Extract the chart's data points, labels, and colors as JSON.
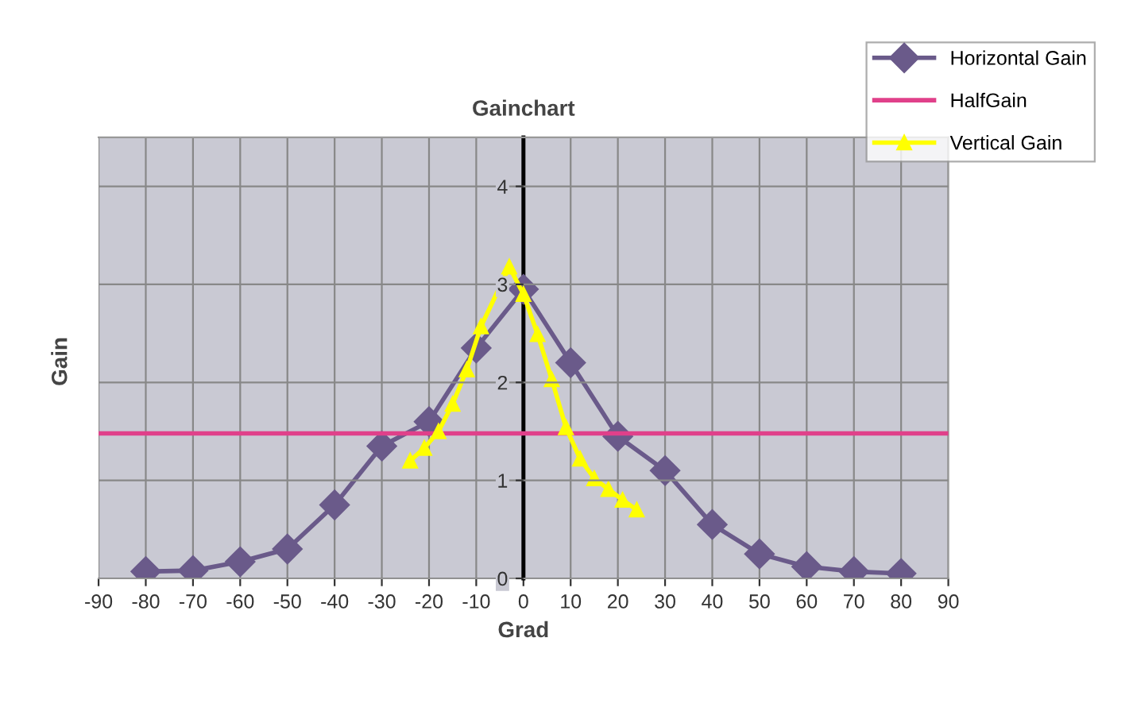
{
  "chart_data": {
    "type": "line",
    "title": "Gainchart",
    "xlabel": "Grad",
    "ylabel": "Gain",
    "xlim": [
      -90,
      90
    ],
    "xticks": [
      -90,
      -80,
      -70,
      -60,
      -50,
      -40,
      -30,
      -20,
      -10,
      0,
      10,
      20,
      30,
      40,
      50,
      60,
      70,
      80,
      90
    ],
    "ylim": [
      0,
      4.5
    ],
    "yticks": [
      0,
      1,
      2,
      3,
      4
    ],
    "grid": true,
    "legend": "top right",
    "series": [
      {
        "name": "Horizontal Gain",
        "color": "#6a5a8a",
        "marker": "diamond",
        "x": [
          -80,
          -70,
          -60,
          -50,
          -40,
          -30,
          -20,
          -10,
          0,
          10,
          20,
          30,
          40,
          50,
          60,
          70,
          80
        ],
        "values": [
          0.07,
          0.08,
          0.17,
          0.3,
          0.75,
          1.35,
          1.6,
          2.35,
          2.95,
          2.2,
          1.45,
          1.1,
          0.55,
          0.25,
          0.12,
          0.07,
          0.05
        ]
      },
      {
        "name": "HalfGain",
        "color": "#e0408a",
        "marker": "none",
        "x": [
          -90,
          90
        ],
        "values": [
          1.48,
          1.48
        ]
      },
      {
        "name": "Vertical Gain",
        "color": "#ffff00",
        "marker": "triangle",
        "x": [
          -24,
          -21,
          -18,
          -15,
          -12,
          -9,
          -3,
          0,
          3,
          6,
          9,
          12,
          15,
          18,
          21,
          24
        ],
        "values": [
          1.2,
          1.33,
          1.5,
          1.78,
          2.13,
          2.57,
          3.18,
          2.9,
          2.49,
          2.03,
          1.54,
          1.22,
          1.02,
          0.91,
          0.8,
          0.7
        ]
      }
    ]
  }
}
